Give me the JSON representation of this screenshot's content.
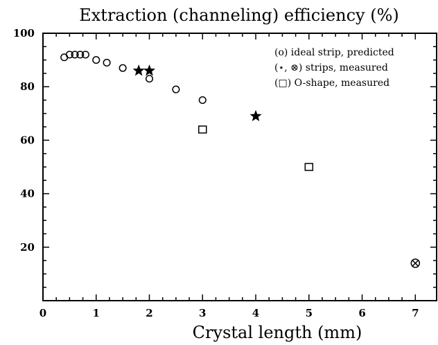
{
  "chart_data": {
    "type": "scatter",
    "title": "Extraction (channeling) efficiency (%)",
    "xlabel": "Crystal length (mm)",
    "ylabel": "",
    "xlim": [
      0,
      7.4
    ],
    "ylim": [
      0,
      100
    ],
    "x_ticks": [
      "0",
      "1",
      "2",
      "3",
      "4",
      "5",
      "6",
      "7"
    ],
    "y_ticks": [
      "20",
      "40",
      "60",
      "80",
      "100"
    ],
    "grid": false,
    "legend_position": "top-right",
    "legend": [
      {
        "marker": "circle",
        "label": "(o) ideal strip, predicted"
      },
      {
        "marker": "star-otimes",
        "label": "(⋆, ⊗) strips, measured"
      },
      {
        "marker": "square",
        "label": "(□) O-shape, measured"
      }
    ],
    "series": [
      {
        "marker": "circle",
        "points": [
          {
            "x": 0.4,
            "y": 91
          },
          {
            "x": 0.5,
            "y": 92
          },
          {
            "x": 0.6,
            "y": 92
          },
          {
            "x": 0.7,
            "y": 92
          },
          {
            "x": 0.8,
            "y": 92
          },
          {
            "x": 1.0,
            "y": 90
          },
          {
            "x": 1.2,
            "y": 89
          },
          {
            "x": 1.5,
            "y": 87
          },
          {
            "x": 2.0,
            "y": 83
          },
          {
            "x": 2.5,
            "y": 79
          },
          {
            "x": 3.0,
            "y": 75
          }
        ]
      },
      {
        "marker": "star",
        "points": [
          {
            "x": 1.8,
            "y": 86
          },
          {
            "x": 2.0,
            "y": 86
          },
          {
            "x": 4.0,
            "y": 69
          }
        ]
      },
      {
        "marker": "otimes",
        "points": [
          {
            "x": 7.0,
            "y": 14
          }
        ]
      },
      {
        "marker": "square",
        "points": [
          {
            "x": 3.0,
            "y": 64
          },
          {
            "x": 5.0,
            "y": 50
          }
        ]
      }
    ]
  }
}
